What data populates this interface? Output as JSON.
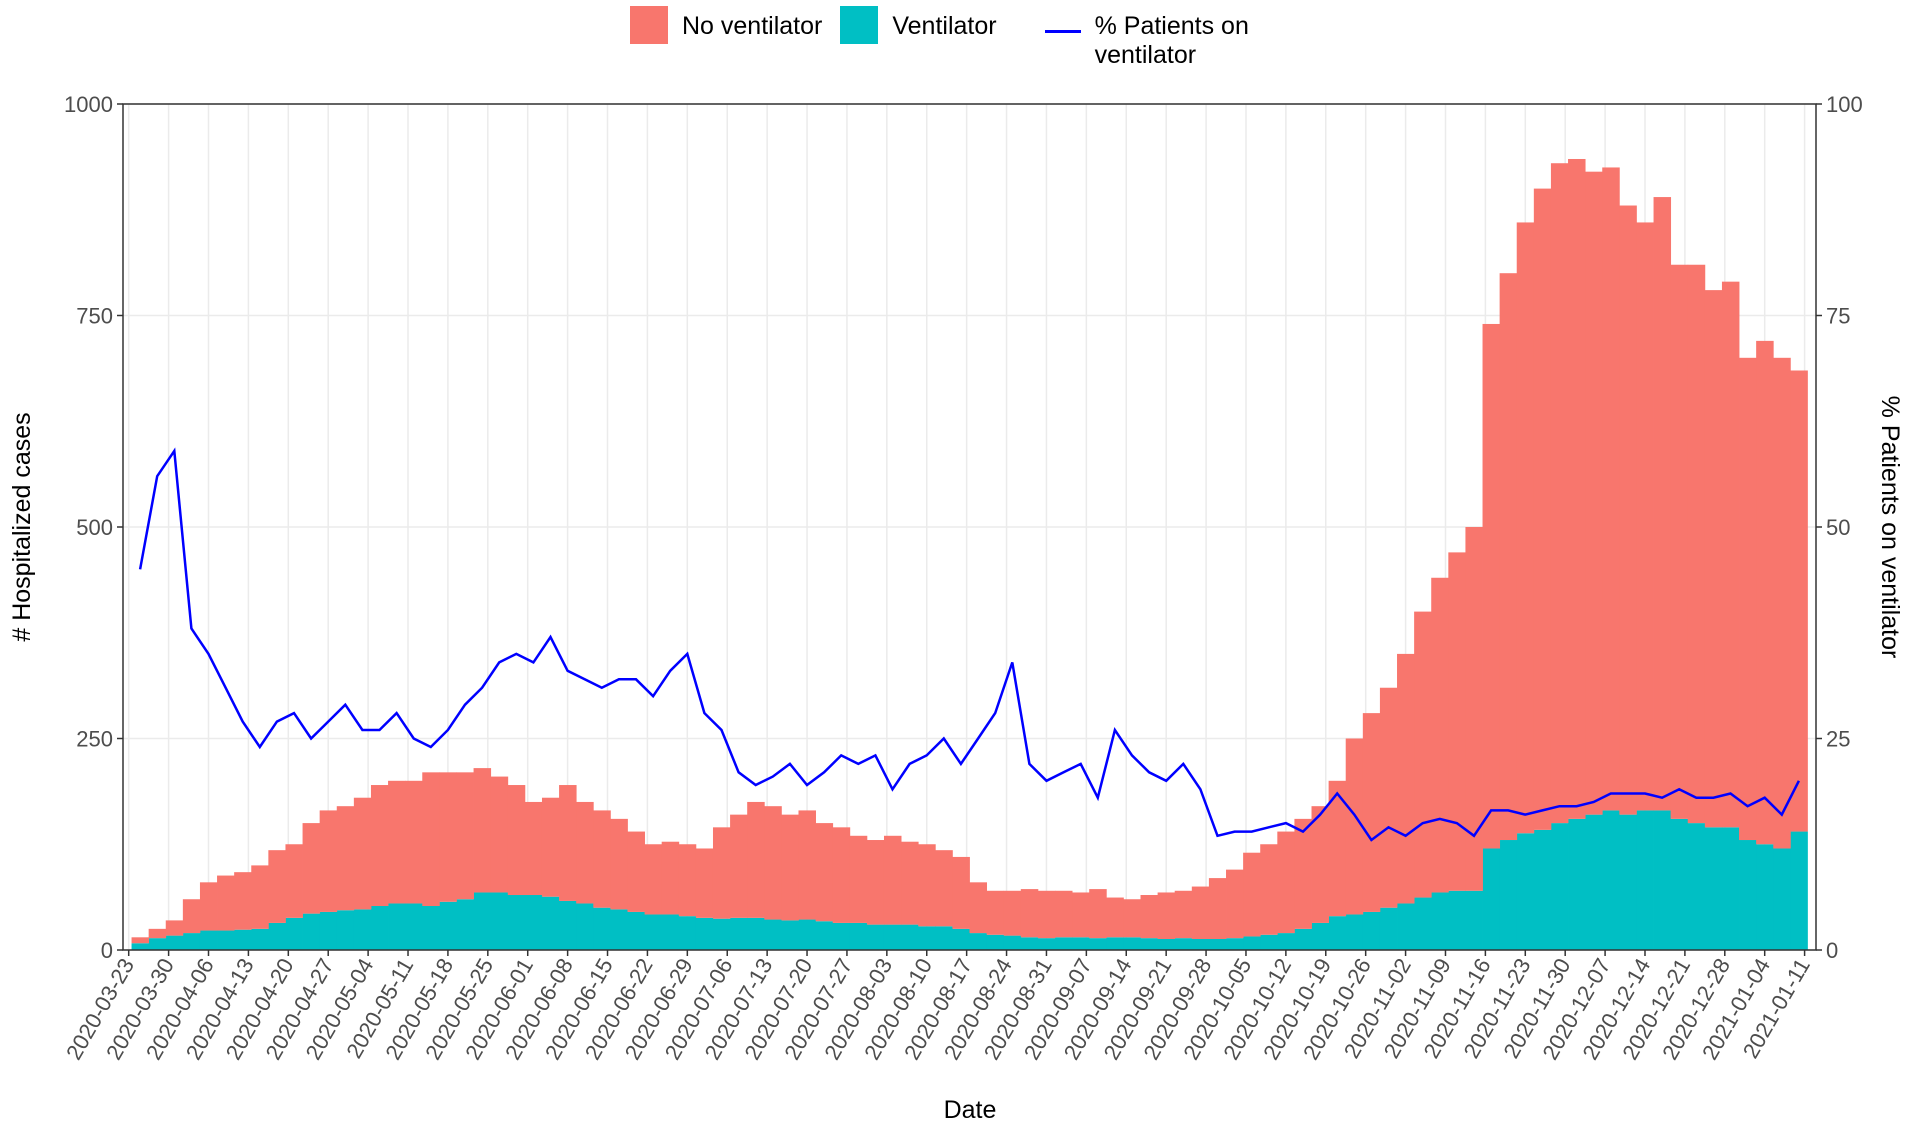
{
  "chart_data": {
    "type": "bar",
    "stacked": true,
    "xlabel": "Date",
    "ylabel": "# Hospitalized cases",
    "y2label": "% Patients on ventilator",
    "x": [
      "2020-03-25",
      "2020-03-28",
      "2020-03-31",
      "2020-04-03",
      "2020-04-06",
      "2020-04-09",
      "2020-04-12",
      "2020-04-15",
      "2020-04-18",
      "2020-04-21",
      "2020-04-24",
      "2020-04-27",
      "2020-04-30",
      "2020-05-03",
      "2020-05-06",
      "2020-05-09",
      "2020-05-12",
      "2020-05-15",
      "2020-05-18",
      "2020-05-21",
      "2020-05-24",
      "2020-05-27",
      "2020-05-30",
      "2020-06-02",
      "2020-06-05",
      "2020-06-08",
      "2020-06-11",
      "2020-06-14",
      "2020-06-17",
      "2020-06-20",
      "2020-06-23",
      "2020-06-26",
      "2020-06-29",
      "2020-07-02",
      "2020-07-05",
      "2020-07-08",
      "2020-07-11",
      "2020-07-14",
      "2020-07-17",
      "2020-07-20",
      "2020-07-23",
      "2020-07-26",
      "2020-07-29",
      "2020-08-01",
      "2020-08-04",
      "2020-08-07",
      "2020-08-10",
      "2020-08-13",
      "2020-08-16",
      "2020-08-19",
      "2020-08-22",
      "2020-08-25",
      "2020-08-28",
      "2020-08-31",
      "2020-09-03",
      "2020-09-06",
      "2020-09-09",
      "2020-09-12",
      "2020-09-15",
      "2020-09-18",
      "2020-09-21",
      "2020-09-24",
      "2020-09-27",
      "2020-09-30",
      "2020-10-03",
      "2020-10-06",
      "2020-10-09",
      "2020-10-12",
      "2020-10-15",
      "2020-10-18",
      "2020-10-21",
      "2020-10-24",
      "2020-10-27",
      "2020-10-30",
      "2020-11-02",
      "2020-11-05",
      "2020-11-08",
      "2020-11-11",
      "2020-11-14",
      "2020-11-17",
      "2020-11-20",
      "2020-11-23",
      "2020-11-26",
      "2020-11-29",
      "2020-12-02",
      "2020-12-05",
      "2020-12-08",
      "2020-12-11",
      "2020-12-14",
      "2020-12-17",
      "2020-12-20",
      "2020-12-23",
      "2020-12-26",
      "2020-12-29",
      "2021-01-01",
      "2021-01-04",
      "2021-01-07",
      "2021-01-10"
    ],
    "series": [
      {
        "name": "No ventilator",
        "color": "#F8766D",
        "values": [
          7,
          11,
          18,
          40,
          57,
          65,
          68,
          75,
          86,
          87,
          107,
          120,
          123,
          132,
          143,
          145,
          145,
          158,
          153,
          150,
          147,
          137,
          130,
          110,
          117,
          137,
          120,
          115,
          107,
          95,
          83,
          86,
          85,
          82,
          108,
          122,
          137,
          134,
          125,
          129,
          116,
          113,
          103,
          100,
          105,
          98,
          97,
          90,
          85,
          60,
          52,
          53,
          57,
          56,
          55,
          53,
          58,
          47,
          45,
          51,
          55,
          56,
          62,
          72,
          81,
          99,
          107,
          120,
          130,
          138,
          160,
          208,
          235,
          260,
          295,
          338,
          372,
          400,
          430,
          620,
          670,
          722,
          758,
          780,
          780,
          760,
          760,
          720,
          695,
          725,
          655,
          660,
          635,
          645,
          570,
          595,
          580,
          545
        ]
      },
      {
        "name": "Ventilator",
        "color": "#00BFC4",
        "values": [
          8,
          14,
          17,
          20,
          23,
          23,
          24,
          25,
          32,
          38,
          43,
          45,
          47,
          48,
          52,
          55,
          55,
          52,
          57,
          60,
          68,
          68,
          65,
          65,
          63,
          58,
          55,
          50,
          48,
          45,
          42,
          42,
          40,
          38,
          37,
          38,
          38,
          36,
          35,
          36,
          34,
          32,
          32,
          30,
          30,
          30,
          28,
          28,
          25,
          20,
          18,
          17,
          15,
          14,
          15,
          15,
          14,
          15,
          15,
          14,
          13,
          14,
          13,
          13,
          14,
          16,
          18,
          20,
          25,
          32,
          40,
          42,
          45,
          50,
          55,
          62,
          68,
          70,
          70,
          120,
          130,
          138,
          142,
          150,
          155,
          160,
          165,
          160,
          165,
          165,
          155,
          150,
          145,
          145,
          130,
          125,
          120,
          140
        ]
      },
      {
        "name": "% Patients on ventilator",
        "type": "line",
        "axis": "y2",
        "color": "#0000FF",
        "values": [
          45,
          56,
          59,
          38,
          35,
          31,
          27,
          24,
          27,
          28,
          25,
          27,
          29,
          26,
          26,
          28,
          25,
          24,
          26,
          29,
          31,
          34,
          35,
          34,
          37,
          33,
          32,
          31,
          32,
          32,
          30,
          33,
          35,
          28,
          26,
          21,
          19.5,
          20.5,
          22,
          19.5,
          21,
          23,
          22,
          23,
          19,
          22,
          23,
          25,
          22,
          25,
          28,
          34,
          22,
          20,
          21,
          22,
          18,
          26,
          23,
          21,
          20,
          22,
          19,
          13.5,
          14,
          14,
          14.5,
          15,
          14,
          16,
          18.5,
          16,
          13,
          14.5,
          13.5,
          15,
          15.5,
          15,
          13.5,
          16.5,
          16.5,
          16,
          16.5,
          17,
          17,
          17.5,
          18.5,
          18.5,
          18.5,
          18,
          19,
          18,
          18,
          18.5,
          17,
          18,
          16,
          20
        ]
      }
    ],
    "ylim": [
      0,
      1000
    ],
    "yticks": [
      0,
      250,
      500,
      750,
      1000
    ],
    "y2lim": [
      0,
      100
    ],
    "y2ticks": [
      0,
      25,
      50,
      75,
      100
    ],
    "xlim": [
      "2020-03-22",
      "2021-01-13"
    ],
    "xticks": [
      "2020-03-23",
      "2020-03-30",
      "2020-04-06",
      "2020-04-13",
      "2020-04-20",
      "2020-04-27",
      "2020-05-04",
      "2020-05-11",
      "2020-05-18",
      "2020-05-25",
      "2020-06-01",
      "2020-06-08",
      "2020-06-15",
      "2020-06-22",
      "2020-06-29",
      "2020-07-06",
      "2020-07-13",
      "2020-07-20",
      "2020-07-27",
      "2020-08-03",
      "2020-08-10",
      "2020-08-17",
      "2020-08-24",
      "2020-08-31",
      "2020-09-07",
      "2020-09-14",
      "2020-09-21",
      "2020-09-28",
      "2020-10-05",
      "2020-10-12",
      "2020-10-19",
      "2020-10-26",
      "2020-11-02",
      "2020-11-09",
      "2020-11-16",
      "2020-11-23",
      "2020-11-30",
      "2020-12-07",
      "2020-12-14",
      "2020-12-21",
      "2020-12-28",
      "2021-01-04",
      "2021-01-11"
    ],
    "grid": true,
    "legend": "top"
  }
}
